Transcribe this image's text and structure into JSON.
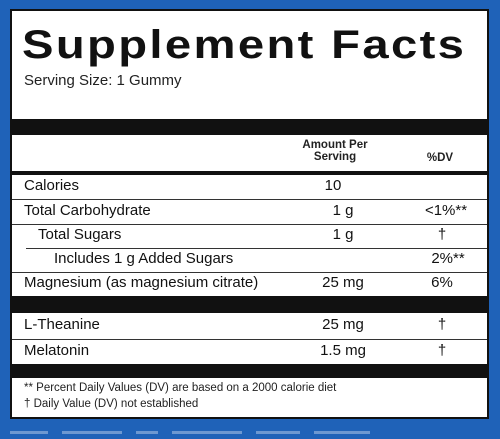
{
  "title": "Supplement Facts",
  "serving_size": "Serving Size: 1 Gummy",
  "header": {
    "amount_label": "Amount Per Serving",
    "dv_label": "%DV"
  },
  "rows": [
    {
      "name": "Calories",
      "amount": "10",
      "dv": ""
    },
    {
      "name": "Total Carbohydrate",
      "amount": "1 g",
      "dv": "<1%**"
    },
    {
      "name": "Total Sugars",
      "amount": "1 g",
      "dv": "†"
    },
    {
      "name": "Includes 1 g Added Sugars",
      "amount": "",
      "dv": "2%**"
    },
    {
      "name": "Magnesium (as magnesium citrate)",
      "amount": "25 mg",
      "dv": "6%"
    },
    {
      "name": "L-Theanine",
      "amount": "25 mg",
      "dv": "†"
    },
    {
      "name": "Melatonin",
      "amount": "1.5 mg",
      "dv": "†"
    }
  ],
  "footnotes": [
    "** Percent Daily Values (DV) are based on a 2000 calorie diet",
    "† Daily Value (DV) not established"
  ],
  "colors": {
    "background": "#1f62b8",
    "panel": "#ffffff",
    "bars": "#111111"
  }
}
